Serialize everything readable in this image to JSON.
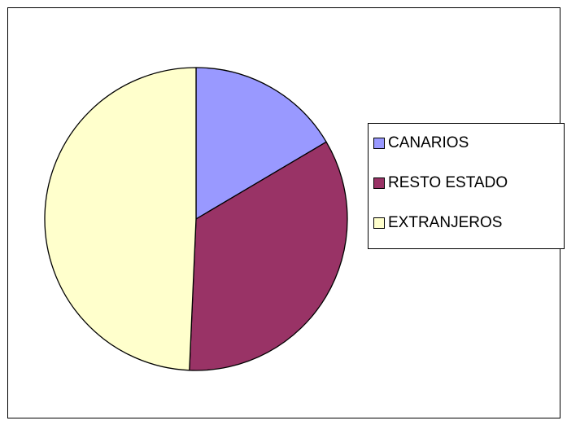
{
  "chart_data": {
    "type": "pie",
    "title": "",
    "categories": [
      "CANARIOS",
      "RESTO ESTADO",
      "EXTRANJEROS"
    ],
    "values": [
      16.5,
      34.2,
      49.3
    ],
    "unit": "%",
    "colors": [
      "#9999ff",
      "#993366",
      "#ffffcc"
    ],
    "start_angle_deg": 0,
    "direction": "clockwise",
    "legend": {
      "position": "right",
      "entries": [
        "CANARIOS",
        "RESTO ESTADO",
        "EXTRANJEROS"
      ]
    }
  }
}
